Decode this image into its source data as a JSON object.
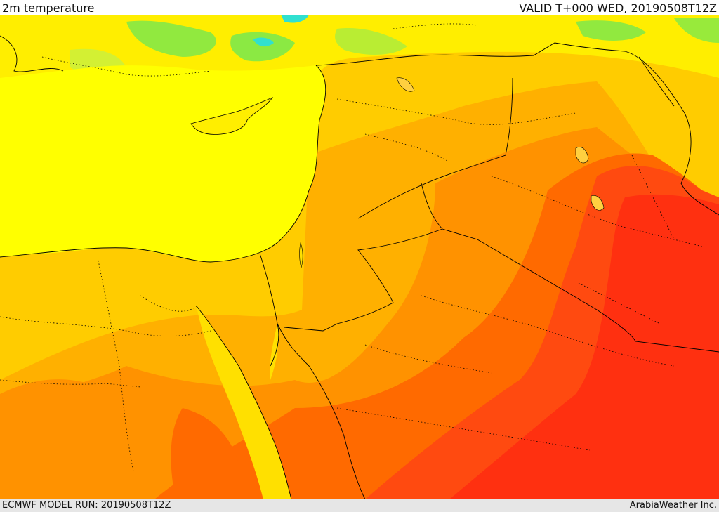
{
  "header": {
    "product_title": "2m temperature",
    "valid_time": "VALID T+000 WED, 20190508T12Z"
  },
  "footer": {
    "model_run": "ECMWF MODEL RUN: 20190508T12Z",
    "credit": "ArabiaWeather Inc."
  },
  "colors": {
    "sea": "#ffff00",
    "cool_green": "#7ee84a",
    "cyan": "#30e0d0",
    "yellow": "#ffee00",
    "gold": "#ffcc00",
    "light_orange": "#ffb000",
    "orange": "#ff9200",
    "dark_orange": "#ff6a00",
    "red_orange": "#ff4a10",
    "red": "#ff3010",
    "border_line": "#000000"
  }
}
